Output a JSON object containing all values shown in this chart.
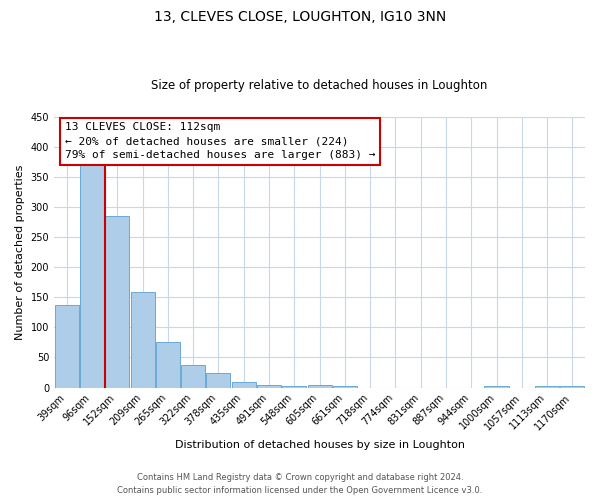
{
  "title": "13, CLEVES CLOSE, LOUGHTON, IG10 3NN",
  "subtitle": "Size of property relative to detached houses in Loughton",
  "xlabel": "Distribution of detached houses by size in Loughton",
  "ylabel": "Number of detached properties",
  "bar_labels": [
    "39sqm",
    "96sqm",
    "152sqm",
    "209sqm",
    "265sqm",
    "322sqm",
    "378sqm",
    "435sqm",
    "491sqm",
    "548sqm",
    "605sqm",
    "661sqm",
    "718sqm",
    "774sqm",
    "831sqm",
    "887sqm",
    "944sqm",
    "1000sqm",
    "1057sqm",
    "1113sqm",
    "1170sqm"
  ],
  "bar_values": [
    138,
    375,
    285,
    158,
    75,
    38,
    25,
    10,
    4,
    2,
    5,
    3,
    0,
    0,
    0,
    0,
    0,
    3,
    0,
    2,
    2
  ],
  "bar_color": "#aecde8",
  "bar_edge_color": "#6aaad4",
  "vline_color": "#cc0000",
  "vline_x": 1.5,
  "ylim": [
    0,
    450
  ],
  "yticks": [
    0,
    50,
    100,
    150,
    200,
    250,
    300,
    350,
    400,
    450
  ],
  "annotation_title": "13 CLEVES CLOSE: 112sqm",
  "annotation_line1": "← 20% of detached houses are smaller (224)",
  "annotation_line2": "79% of semi-detached houses are larger (883) →",
  "annotation_box_color": "#ffffff",
  "annotation_box_edge": "#cc0000",
  "footer_line1": "Contains HM Land Registry data © Crown copyright and database right 2024.",
  "footer_line2": "Contains public sector information licensed under the Open Government Licence v3.0.",
  "background_color": "#ffffff",
  "grid_color": "#c8d8e8",
  "title_fontsize": 10,
  "subtitle_fontsize": 8.5,
  "xlabel_fontsize": 8,
  "ylabel_fontsize": 8,
  "tick_fontsize": 7,
  "annotation_fontsize": 8,
  "footer_fontsize": 6
}
